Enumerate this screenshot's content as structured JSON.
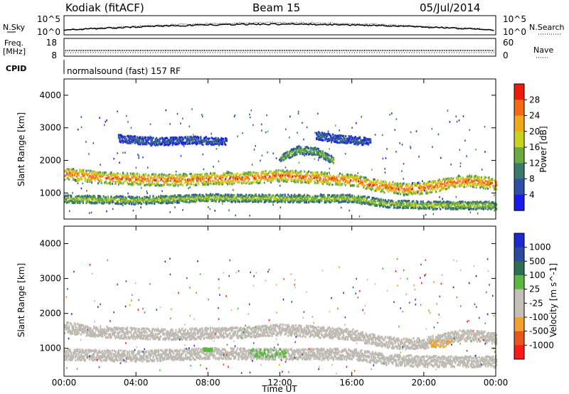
{
  "header": {
    "station": "Kodiak (fitACF)",
    "beam": "Beam 15",
    "date": "05/Jul/2014"
  },
  "panels": {
    "nsky": {
      "label": "N.Sky",
      "ymax": "10^5",
      "ymin": "10^0"
    },
    "nsearch": {
      "label": "N.Search",
      "ymax": "10^5",
      "ymin": "10^0"
    },
    "freq": {
      "label_line1": "Freq.",
      "label_line2": "[MHz]",
      "ymax": "18",
      "ymin": "8"
    },
    "nave": {
      "label": "Nave",
      "ymax": "60",
      "ymin": "0"
    },
    "cpid": {
      "label": "CPID",
      "text": "normalsound (fast) 157 RF"
    }
  },
  "colors": {
    "power": [
      "#1a1aee",
      "#2e4fa8",
      "#3a7a6a",
      "#6aaa40",
      "#c9d21e",
      "#f0a81c",
      "#f56a14",
      "#ee1a0e"
    ],
    "velocity": [
      "#ff1a1a",
      "#e8551a",
      "#f2a030",
      "#c4c0b8",
      "#c4c0b8",
      "#5ab840",
      "#2e6e50",
      "#2a4aa0",
      "#1a2ad0"
    ],
    "ground_scatter": "#bdbab2"
  },
  "chart_data": [
    {
      "type": "heatmap",
      "name": "Power",
      "title": "",
      "xlabel": "",
      "ylabel": "Slant Range [km]",
      "ylim": [
        200,
        4500
      ],
      "xlim": [
        0,
        24
      ],
      "yticks": [
        "1000",
        "2000",
        "3000",
        "4000"
      ],
      "xticks": [
        "00:00",
        "04:00",
        "08:00",
        "12:00",
        "16:00",
        "20:00",
        "00:00"
      ],
      "colorbar": {
        "label": "Power [dB]",
        "ticks": [
          "28",
          "24",
          "20",
          "16",
          "12",
          "8",
          "4"
        ],
        "range": [
          0,
          30
        ]
      },
      "bands": [
        {
          "t": [
            0,
            2,
            4,
            6,
            8,
            10,
            12,
            14,
            16,
            17,
            18,
            19,
            20,
            21,
            22,
            23,
            24
          ],
          "range": [
            1620,
            1500,
            1450,
            1430,
            1460,
            1480,
            1560,
            1500,
            1420,
            1300,
            1200,
            1150,
            1180,
            1280,
            1400,
            1380,
            1300
          ],
          "value": 22
        },
        {
          "t": [
            0,
            4,
            8,
            12,
            16,
            18,
            20,
            22,
            24
          ],
          "range": [
            850,
            800,
            880,
            860,
            860,
            700,
            650,
            650,
            640
          ],
          "value": 14
        },
        {
          "t": [
            12,
            13,
            14,
            15
          ],
          "range": [
            2100,
            2350,
            2300,
            2000
          ],
          "value": 12
        },
        {
          "t": [
            3,
            5,
            7,
            9
          ],
          "range": [
            2700,
            2600,
            2650,
            2600
          ],
          "value": 6
        },
        {
          "t": [
            14,
            15,
            16,
            17
          ],
          "range": [
            2800,
            2700,
            2650,
            2600
          ],
          "value": 6
        }
      ]
    },
    {
      "type": "heatmap",
      "name": "Velocity",
      "title": "",
      "xlabel": "Time UT",
      "ylabel": "Slant Range [km]",
      "ylim": [
        200,
        4500
      ],
      "xlim": [
        0,
        24
      ],
      "yticks": [
        "1000",
        "2000",
        "3000",
        "4000"
      ],
      "xticks": [
        "00:00",
        "04:00",
        "08:00",
        "12:00",
        "16:00",
        "20:00",
        "00:00"
      ],
      "colorbar": {
        "label": "Velocity [m s^-1]",
        "ticks": [
          "1000",
          "500",
          "100",
          "25",
          "-25",
          "-100",
          "-500",
          "-1000"
        ],
        "range": [
          -1000,
          1000
        ]
      },
      "ground_scatter_bands": [
        {
          "t": [
            0,
            2,
            4,
            6,
            8,
            10,
            12,
            14,
            16,
            17,
            18,
            19,
            20,
            21,
            22,
            23,
            24
          ],
          "range": [
            1620,
            1500,
            1450,
            1430,
            1460,
            1480,
            1560,
            1500,
            1420,
            1300,
            1200,
            1150,
            1180,
            1280,
            1400,
            1380,
            1300
          ]
        },
        {
          "t": [
            0,
            4,
            8,
            12,
            16,
            18,
            20,
            22,
            24
          ],
          "range": [
            850,
            800,
            880,
            860,
            860,
            700,
            650,
            650,
            640
          ]
        }
      ],
      "positive_patches": [
        {
          "t": [
            10.3,
            12.3
          ],
          "range": [
            780,
            1020
          ]
        },
        {
          "t": [
            7.7,
            8.2
          ],
          "range": [
            950,
            1030
          ]
        }
      ],
      "negative_patches": [
        {
          "t": [
            20.3,
            21.5
          ],
          "range": [
            1050,
            1250
          ]
        }
      ]
    }
  ]
}
